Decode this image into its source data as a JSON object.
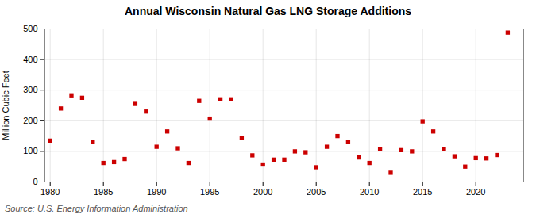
{
  "chart_data": {
    "type": "scatter",
    "title": "Annual Wisconsin Natural Gas LNG Storage Additions",
    "ylabel": "Million Cubic Feet",
    "source": "Source: U.S. Energy Information Administration",
    "x": [
      1980,
      1981,
      1982,
      1983,
      1984,
      1985,
      1986,
      1987,
      1988,
      1989,
      1990,
      1991,
      1992,
      1993,
      1994,
      1995,
      1996,
      1997,
      1998,
      1999,
      2000,
      2001,
      2002,
      2003,
      2004,
      2005,
      2006,
      2007,
      2008,
      2009,
      2010,
      2011,
      2012,
      2013,
      2014,
      2015,
      2016,
      2017,
      2018,
      2019,
      2020,
      2021,
      2022,
      2023
    ],
    "values": [
      135,
      240,
      283,
      275,
      130,
      62,
      65,
      75,
      255,
      230,
      115,
      165,
      110,
      62,
      265,
      207,
      270,
      270,
      143,
      87,
      57,
      73,
      73,
      100,
      97,
      48,
      115,
      150,
      130,
      80,
      62,
      108,
      30,
      104,
      100,
      198,
      165,
      108,
      84,
      50,
      78,
      77,
      88,
      488
    ],
    "color": "#cc0000",
    "marker": "square",
    "xlim": [
      1979.5,
      2024.5
    ],
    "xticks": [
      1980,
      1985,
      1990,
      1995,
      2000,
      2005,
      2010,
      2015,
      2020
    ],
    "ylim": [
      0,
      500
    ],
    "yticks": [
      0,
      100,
      200,
      300,
      400,
      500
    ],
    "grid": true
  }
}
